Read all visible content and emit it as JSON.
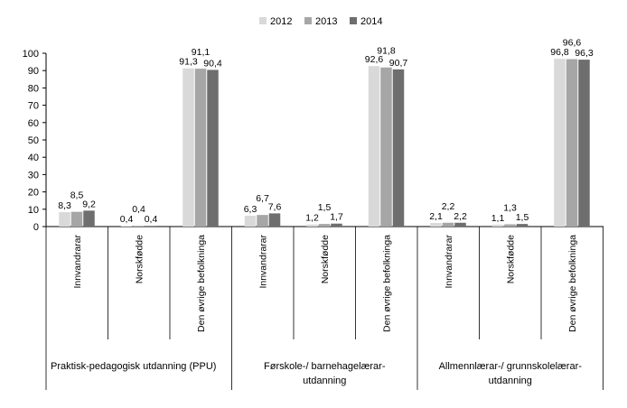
{
  "chart_data": {
    "type": "bar",
    "title": "",
    "xlabel": "",
    "ylabel": "",
    "ylim": [
      0,
      100
    ],
    "yticks": [
      0,
      10,
      20,
      30,
      40,
      50,
      60,
      70,
      80,
      90,
      100
    ],
    "grid": false,
    "legend": "top-center",
    "groups": [
      {
        "label_lines": [
          "Praktisk-pedagogisk utdanning (PPU)"
        ],
        "categories": [
          "Innvandrarar",
          "Norskfødde",
          "Den øvrige befolkninga"
        ]
      },
      {
        "label_lines": [
          "Førskole-/ barnehagelærar-",
          "utdanning"
        ],
        "categories": [
          "Innvandrarar",
          "Norskfødde",
          "Den øvrige befolkninga"
        ]
      },
      {
        "label_lines": [
          "Allmennlærar-/ grunnskolelærar-",
          "utdanning"
        ],
        "categories": [
          "Innvandrarar",
          "Norskfødde",
          "Den øvrige befolkninga"
        ]
      }
    ],
    "series": [
      {
        "name": "2012",
        "color": "#d9d9d9",
        "values": [
          8.3,
          0.4,
          91.3,
          6.3,
          1.2,
          92.6,
          2.1,
          1.1,
          96.8
        ],
        "labels": [
          "8,3",
          "0,4",
          "91,3",
          "6,3",
          "1,2",
          "92,6",
          "2,1",
          "1,1",
          "96,8"
        ]
      },
      {
        "name": "2013",
        "color": "#a6a6a6",
        "values": [
          8.5,
          0.4,
          91.1,
          6.7,
          1.5,
          91.8,
          2.2,
          1.3,
          96.6
        ],
        "labels": [
          "8,5",
          "0,4",
          "91,1",
          "6,7",
          "1,5",
          "91,8",
          "2,2",
          "1,3",
          "96,6"
        ]
      },
      {
        "name": "2014",
        "color": "#6e6e6e",
        "values": [
          9.2,
          0.4,
          90.4,
          7.6,
          1.7,
          90.7,
          2.2,
          1.5,
          96.3
        ],
        "labels": [
          "9,2",
          "0,4",
          "90,4",
          "7,6",
          "1,7",
          "90,7",
          "2,2",
          "1,5",
          "96,3"
        ]
      }
    ]
  }
}
